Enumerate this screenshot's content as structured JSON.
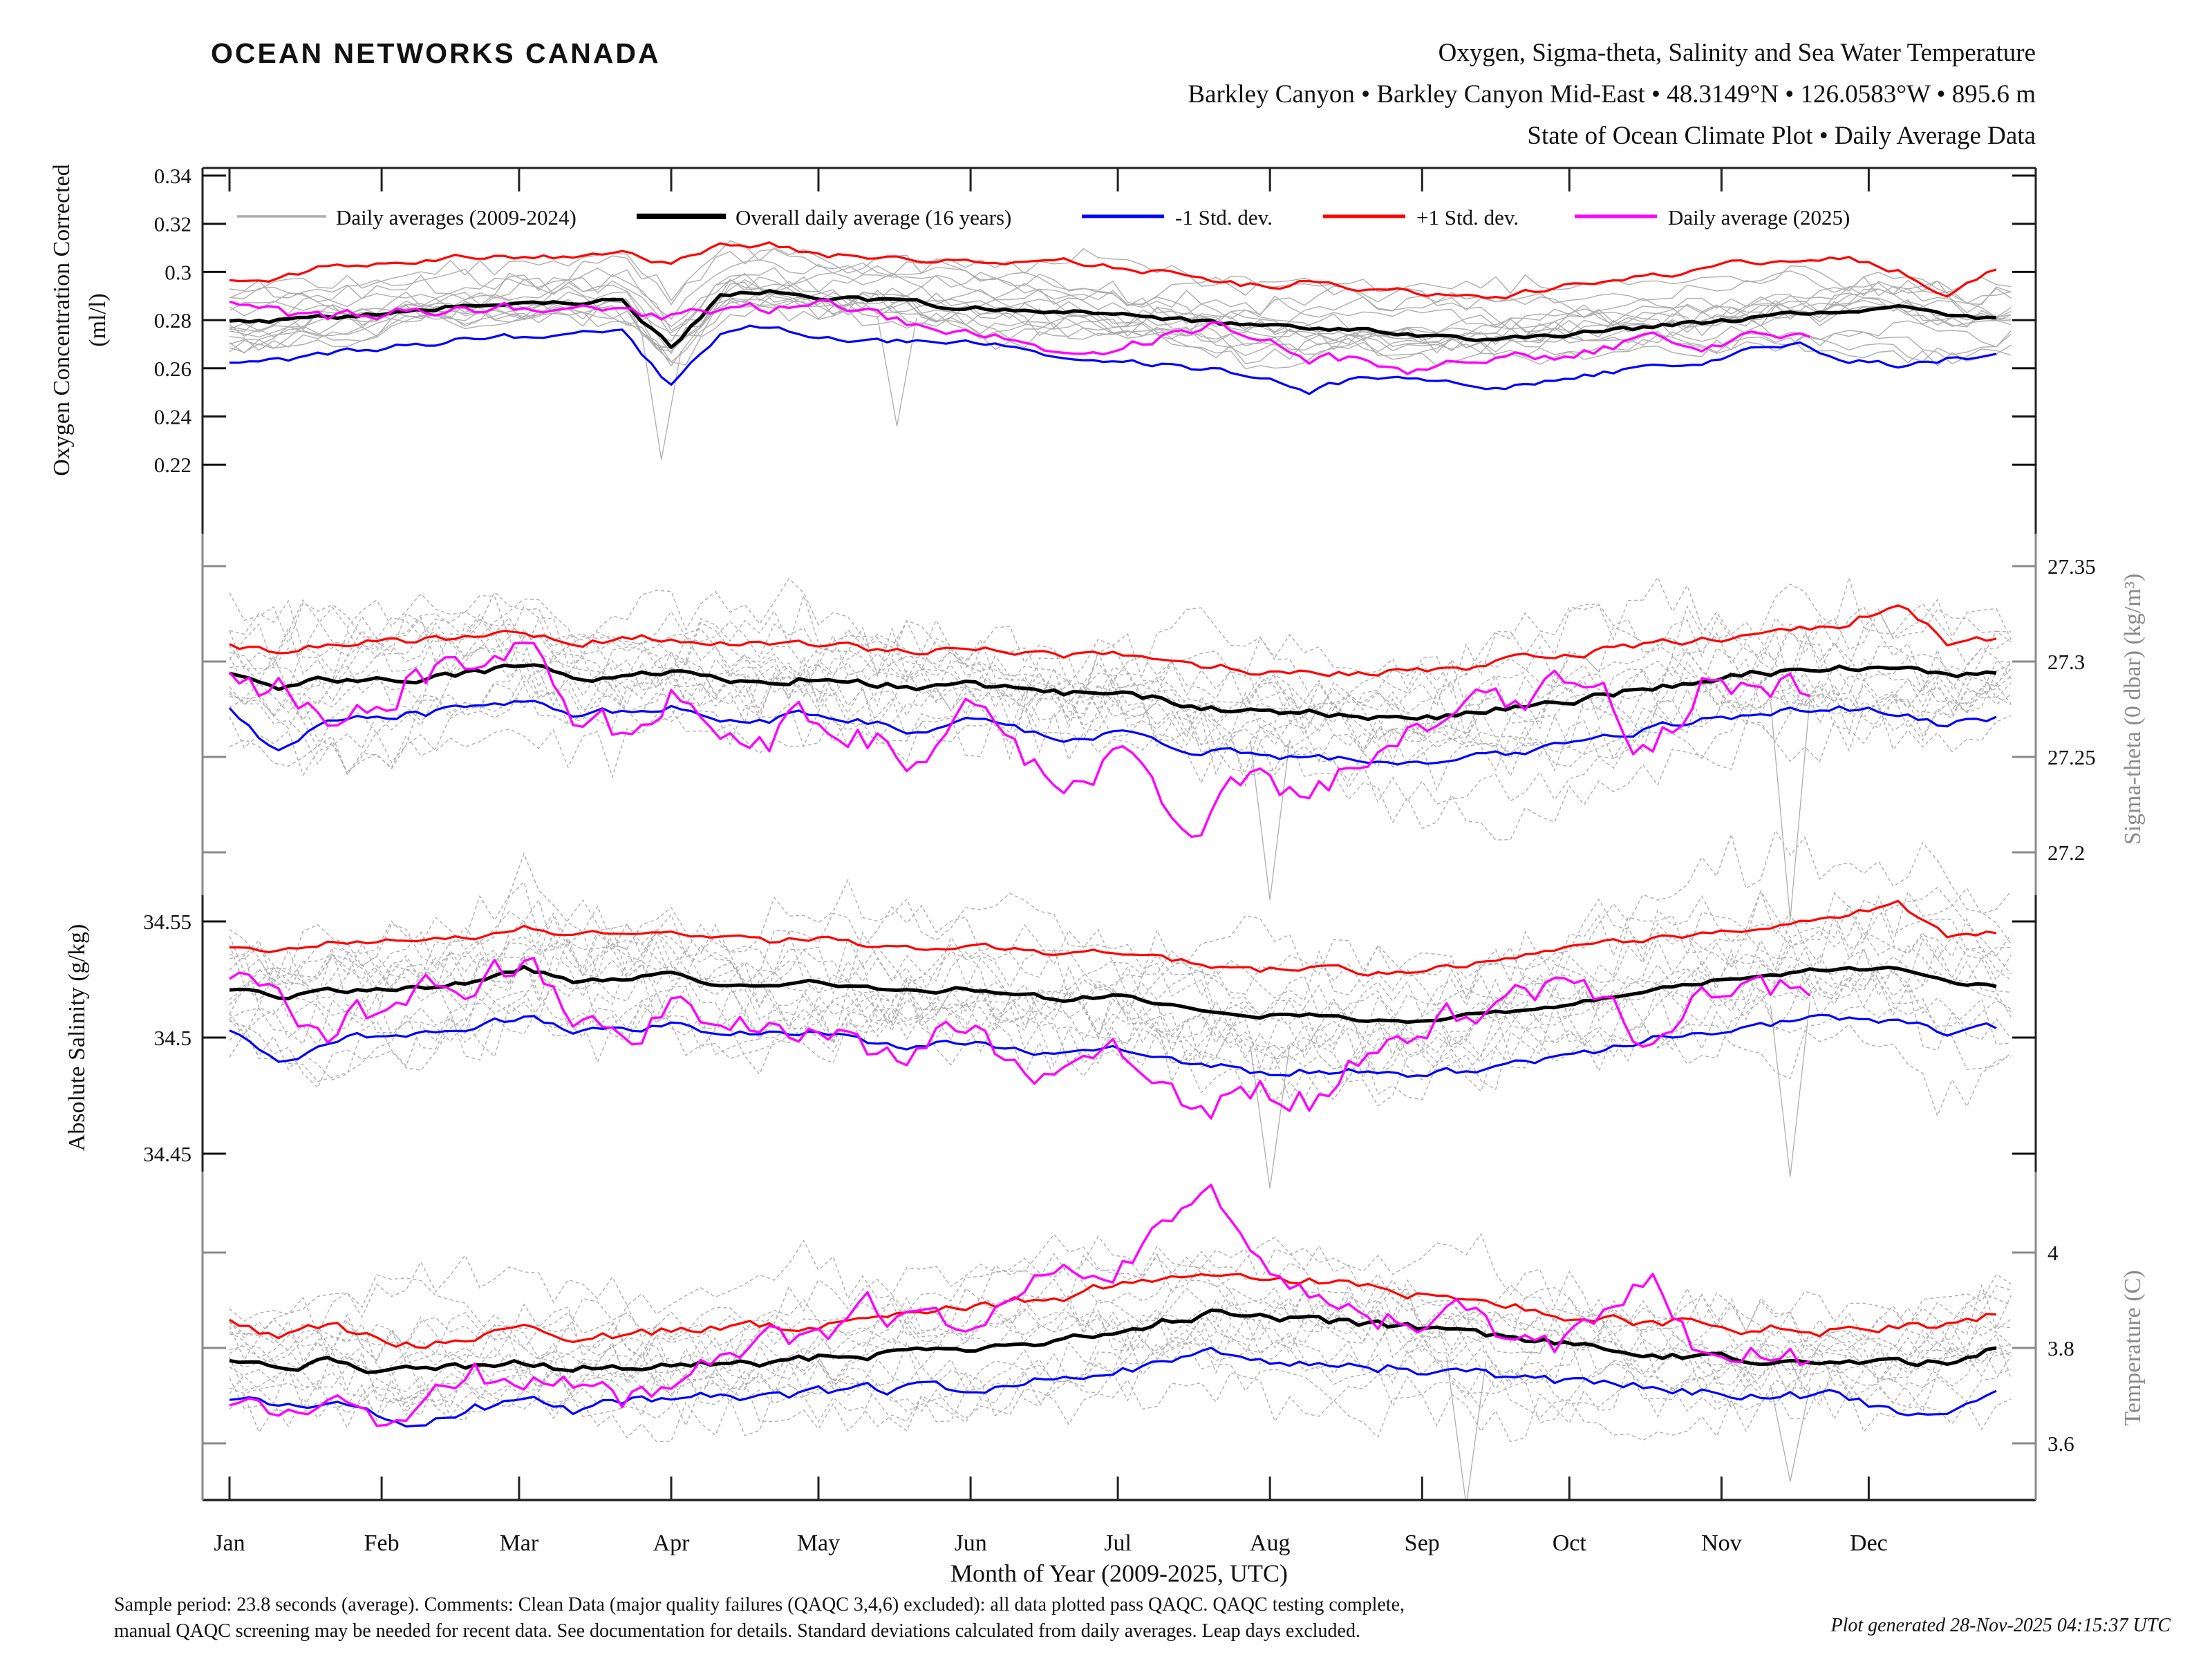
{
  "header": {
    "logo": "OCEAN NETWORKS CANADA",
    "title_line1": "Oxygen, Sigma-theta, Salinity and Sea Water Temperature",
    "title_line2": "Barkley Canyon • Barkley Canyon Mid-East • 48.3149°N • 126.0583°W • 895.6 m",
    "title_line3": "State of Ocean Climate Plot • Daily Average Data"
  },
  "colors": {
    "brand_teal": "#1E98B5",
    "mean": "#000000",
    "std_minus": "#0000FF",
    "std_plus": "#FF0000",
    "current_year": "#FF00FF",
    "history": "#ADADAD",
    "axis_gray": "#8A8A8A"
  },
  "legend": [
    {
      "label": "Daily averages (2009-2024)",
      "color_key": "history"
    },
    {
      "label": "Overall daily average (16 years)",
      "color_key": "mean"
    },
    {
      "label": "-1 Std. dev.",
      "color_key": "std_minus"
    },
    {
      "label": "+1 Std. dev.",
      "color_key": "std_plus"
    },
    {
      "label": "Daily average (2025)",
      "color_key": "current_year"
    }
  ],
  "x_axis": {
    "label": "Month of Year (2009-2025, UTC)",
    "month_labels": [
      "Jan",
      "Feb",
      "Mar",
      "Apr",
      "May",
      "Jun",
      "Jul",
      "Aug",
      "Sep",
      "Oct",
      "Nov",
      "Dec"
    ],
    "month_start_days": [
      0,
      31,
      59,
      90,
      120,
      151,
      181,
      212,
      243,
      273,
      304,
      334
    ]
  },
  "footer": {
    "line1": "Sample period: 23.8 seconds (average). Comments: Clean Data (major quality failures (QAQC 3,4,6) excluded): all data plotted pass QAQC. QAQC testing complete,",
    "line2": "manual QAQC screening may be needed for recent data. See documentation for details. Standard deviations calculated from daily averages. Leap days excluded.",
    "generated_note": "Plot generated 28-Nov-2025 04:15:37 UTC"
  },
  "chart_meta": {
    "seed": 42,
    "x_days_climatology": [
      0,
      10,
      20,
      30,
      40,
      50,
      60,
      70,
      80,
      90,
      100,
      110,
      120,
      130,
      140,
      150,
      160,
      170,
      180,
      190,
      200,
      210,
      220,
      230,
      240,
      250,
      260,
      270,
      280,
      290,
      300,
      310,
      320,
      330,
      340,
      350,
      360
    ],
    "x_days_2025": [
      0,
      10,
      20,
      30,
      40,
      50,
      60,
      70,
      80,
      90,
      100,
      110,
      120,
      130,
      140,
      150,
      160,
      170,
      180,
      190,
      200,
      210,
      220,
      230,
      240,
      250,
      260,
      270,
      280,
      290,
      300,
      310,
      322
    ]
  },
  "chart_data": [
    {
      "type": "line",
      "name": "oxygen",
      "ylabel_lines": [
        "Oxygen Concentration Corrected",
        "(ml/l)"
      ],
      "axis_side": "left",
      "tick_values": [
        0.34,
        0.32,
        0.3,
        0.28,
        0.26,
        0.24,
        0.22
      ],
      "tick_labels": [
        "0.34",
        "0.32",
        "0.3",
        "0.28",
        "0.26",
        "0.24",
        "0.22"
      ],
      "ylim": [
        0.215,
        0.345
      ],
      "history": {
        "count": 15,
        "spread": 0.012,
        "fast": 0.003,
        "dashed": false,
        "spikes": [
          {
            "day": 88,
            "value": 0.222
          },
          {
            "day": 136,
            "value": 0.236
          }
        ]
      },
      "series": [
        {
          "id": "std_plus",
          "color_key": "std_plus",
          "width": 3.2,
          "jitter": 0.0016,
          "x": "climatology",
          "values": [
            0.296,
            0.298,
            0.302,
            0.304,
            0.305,
            0.306,
            0.305,
            0.306,
            0.307,
            0.303,
            0.31,
            0.312,
            0.307,
            0.306,
            0.305,
            0.304,
            0.303,
            0.304,
            0.302,
            0.3,
            0.297,
            0.294,
            0.296,
            0.293,
            0.292,
            0.291,
            0.289,
            0.294,
            0.297,
            0.299,
            0.301,
            0.304,
            0.306,
            0.305,
            0.3,
            0.291,
            0.301
          ]
        },
        {
          "id": "std_minus",
          "color_key": "std_minus",
          "width": 3.2,
          "jitter": 0.0016,
          "x": "climatology",
          "values": [
            0.262,
            0.263,
            0.266,
            0.268,
            0.27,
            0.272,
            0.273,
            0.274,
            0.275,
            0.253,
            0.274,
            0.278,
            0.272,
            0.271,
            0.272,
            0.27,
            0.268,
            0.265,
            0.263,
            0.261,
            0.259,
            0.256,
            0.251,
            0.255,
            0.257,
            0.254,
            0.252,
            0.255,
            0.258,
            0.26,
            0.263,
            0.268,
            0.27,
            0.264,
            0.262,
            0.264,
            0.266
          ]
        },
        {
          "id": "mean",
          "color_key": "mean",
          "width": 5,
          "jitter": 0.0012,
          "x": "climatology",
          "values": [
            0.279,
            0.28,
            0.281,
            0.283,
            0.285,
            0.287,
            0.287,
            0.288,
            0.288,
            0.269,
            0.29,
            0.292,
            0.289,
            0.288,
            0.287,
            0.285,
            0.284,
            0.284,
            0.283,
            0.281,
            0.279,
            0.277,
            0.277,
            0.276,
            0.274,
            0.273,
            0.272,
            0.274,
            0.276,
            0.277,
            0.279,
            0.281,
            0.283,
            0.285,
            0.285,
            0.282,
            0.281
          ]
        },
        {
          "id": "year_2025",
          "color_key": "current_year",
          "width": 3.4,
          "jitter": 0.003,
          "x": "2025",
          "values": [
            0.287,
            0.283,
            0.281,
            0.282,
            0.284,
            0.283,
            0.285,
            0.284,
            0.283,
            0.282,
            0.284,
            0.285,
            0.287,
            0.283,
            0.279,
            0.273,
            0.27,
            0.268,
            0.267,
            0.272,
            0.277,
            0.272,
            0.265,
            0.262,
            0.26,
            0.263,
            0.266,
            0.264,
            0.268,
            0.272,
            0.27,
            0.274,
            0.273
          ]
        }
      ]
    },
    {
      "type": "line",
      "name": "sigma_theta",
      "ylabel": "Sigma-theta (0 dbar) (kg/m³)",
      "axis_side": "right",
      "tick_values": [
        27.35,
        27.3,
        27.25,
        27.2
      ],
      "tick_labels": [
        "27.35",
        "27.3",
        "27.25",
        "27.2"
      ],
      "ylim": [
        27.11,
        27.37
      ],
      "history": {
        "count": 15,
        "spread": 0.03,
        "fast": 0.012,
        "dashed": true,
        "spikes": [
          {
            "day": 212,
            "value": 27.175
          },
          {
            "day": 318,
            "value": 27.165
          }
        ]
      },
      "series": [
        {
          "id": "std_plus",
          "color_key": "std_plus",
          "width": 3.2,
          "jitter": 0.0024,
          "x": "climatology",
          "values": [
            27.308,
            27.305,
            27.309,
            27.31,
            27.312,
            27.312,
            27.315,
            27.31,
            27.312,
            27.313,
            27.31,
            27.308,
            27.31,
            27.307,
            27.305,
            27.307,
            27.305,
            27.303,
            27.304,
            27.3,
            27.297,
            27.295,
            27.297,
            27.294,
            27.295,
            27.297,
            27.3,
            27.303,
            27.306,
            27.309,
            27.311,
            27.313,
            27.316,
            27.32,
            27.332,
            27.31,
            27.312
          ]
        },
        {
          "id": "std_minus",
          "color_key": "std_minus",
          "width": 3.2,
          "jitter": 0.0026,
          "x": "climatology",
          "values": [
            27.277,
            27.252,
            27.27,
            27.272,
            27.273,
            27.275,
            27.279,
            27.273,
            27.274,
            27.276,
            27.271,
            27.27,
            27.272,
            27.268,
            27.264,
            27.268,
            27.264,
            27.26,
            27.263,
            27.258,
            27.253,
            27.249,
            27.25,
            27.248,
            27.245,
            27.247,
            27.251,
            27.255,
            27.26,
            27.266,
            27.27,
            27.272,
            27.274,
            27.275,
            27.272,
            27.267,
            27.271
          ]
        },
        {
          "id": "mean",
          "color_key": "mean",
          "width": 5,
          "jitter": 0.0022,
          "x": "climatology",
          "values": [
            27.293,
            27.287,
            27.29,
            27.291,
            27.292,
            27.294,
            27.298,
            27.292,
            27.293,
            27.295,
            27.291,
            27.29,
            27.292,
            27.289,
            27.287,
            27.289,
            27.286,
            27.283,
            27.285,
            27.28,
            27.276,
            27.273,
            27.274,
            27.272,
            27.27,
            27.272,
            27.275,
            27.278,
            27.282,
            27.287,
            27.29,
            27.293,
            27.295,
            27.297,
            27.296,
            27.292,
            27.294
          ]
        },
        {
          "id": "year_2025",
          "color_key": "current_year",
          "width": 3.4,
          "jitter": 0.011,
          "x": "2025",
          "values": [
            27.3,
            27.285,
            27.27,
            27.28,
            27.295,
            27.288,
            27.31,
            27.275,
            27.262,
            27.282,
            27.27,
            27.262,
            27.268,
            27.258,
            27.252,
            27.27,
            27.248,
            27.24,
            27.252,
            27.23,
            27.22,
            27.235,
            27.228,
            27.245,
            27.256,
            27.268,
            27.276,
            27.285,
            27.282,
            27.252,
            27.29,
            27.288,
            27.282
          ]
        }
      ]
    },
    {
      "type": "line",
      "name": "salinity",
      "ylabel": "Absolute Salinity (g/kg)",
      "axis_side": "left",
      "tick_values": [
        34.55,
        34.5,
        34.45
      ],
      "tick_labels": [
        "34.55",
        "34.5",
        "34.45"
      ],
      "ylim": [
        34.42,
        34.59
      ],
      "history": {
        "count": 15,
        "spread": 0.026,
        "fast": 0.01,
        "dashed": true,
        "spikes": [
          {
            "day": 212,
            "value": 34.435
          },
          {
            "day": 318,
            "value": 34.44
          }
        ]
      },
      "series": [
        {
          "id": "std_plus",
          "color_key": "std_plus",
          "width": 3.2,
          "jitter": 0.0015,
          "x": "climatology",
          "values": [
            34.54,
            34.537,
            34.541,
            34.542,
            34.543,
            34.544,
            34.548,
            34.543,
            34.545,
            34.546,
            34.543,
            34.541,
            34.543,
            34.54,
            34.538,
            34.54,
            34.538,
            34.536,
            34.537,
            34.534,
            34.531,
            34.529,
            34.531,
            34.528,
            34.529,
            34.531,
            34.534,
            34.537,
            34.54,
            34.543,
            34.545,
            34.547,
            34.55,
            34.553,
            34.558,
            34.543,
            34.545
          ]
        },
        {
          "id": "std_minus",
          "color_key": "std_minus",
          "width": 3.2,
          "jitter": 0.002,
          "x": "climatology",
          "values": [
            34.503,
            34.488,
            34.499,
            34.501,
            34.502,
            34.504,
            34.509,
            34.503,
            34.504,
            34.506,
            34.502,
            34.501,
            34.503,
            34.499,
            34.496,
            34.499,
            34.496,
            34.493,
            34.495,
            34.491,
            34.488,
            34.485,
            34.486,
            34.485,
            34.483,
            34.485,
            34.488,
            34.491,
            34.495,
            34.5,
            34.503,
            34.505,
            34.507,
            34.508,
            34.506,
            34.502,
            34.504
          ]
        },
        {
          "id": "mean",
          "color_key": "mean",
          "width": 5,
          "jitter": 0.0012,
          "x": "climatology",
          "values": [
            34.521,
            34.517,
            34.52,
            34.521,
            34.522,
            34.524,
            34.53,
            34.524,
            34.525,
            34.527,
            34.523,
            34.522,
            34.524,
            34.521,
            34.519,
            34.521,
            34.519,
            34.516,
            34.518,
            34.514,
            34.511,
            34.509,
            34.51,
            34.508,
            34.507,
            34.509,
            34.511,
            34.514,
            34.517,
            34.521,
            34.524,
            34.526,
            34.528,
            34.53,
            34.529,
            34.525,
            34.522
          ]
        },
        {
          "id": "year_2025",
          "color_key": "current_year",
          "width": 3.4,
          "jitter": 0.008,
          "x": "2025",
          "values": [
            34.525,
            34.515,
            34.505,
            34.512,
            34.524,
            34.519,
            34.533,
            34.51,
            34.5,
            34.515,
            34.508,
            34.5,
            34.505,
            34.498,
            34.494,
            34.51,
            34.492,
            34.485,
            34.494,
            34.478,
            34.468,
            34.48,
            34.474,
            34.488,
            34.497,
            34.508,
            34.515,
            34.522,
            34.52,
            34.495,
            34.526,
            34.524,
            34.518
          ]
        }
      ]
    },
    {
      "type": "line",
      "name": "temperature",
      "ylabel": "Temperature (C)",
      "axis_side": "right",
      "tick_values": [
        4,
        3.8,
        3.6
      ],
      "tick_labels": [
        "4",
        "3.8",
        "3.6"
      ],
      "ylim": [
        3.55,
        4.2
      ],
      "history": {
        "count": 15,
        "spread": 0.105,
        "fast": 0.04,
        "dashed": true,
        "spikes": [
          {
            "day": 252,
            "value": 3.47
          },
          {
            "day": 318,
            "value": 3.52
          }
        ]
      },
      "series": [
        {
          "id": "std_plus",
          "color_key": "std_plus",
          "width": 3.2,
          "jitter": 0.013,
          "x": "climatology",
          "values": [
            3.85,
            3.828,
            3.845,
            3.82,
            3.812,
            3.825,
            3.832,
            3.82,
            3.828,
            3.838,
            3.845,
            3.842,
            3.852,
            3.862,
            3.872,
            3.882,
            3.895,
            3.91,
            3.93,
            3.952,
            3.965,
            3.95,
            3.938,
            3.928,
            3.918,
            3.902,
            3.888,
            3.875,
            3.862,
            3.855,
            3.85,
            3.843,
            3.838,
            3.835,
            3.842,
            3.848,
            3.87
          ]
        },
        {
          "id": "std_minus",
          "color_key": "std_minus",
          "width": 3.2,
          "jitter": 0.013,
          "x": "climatology",
          "values": [
            3.7,
            3.685,
            3.695,
            3.668,
            3.64,
            3.672,
            3.69,
            3.668,
            3.685,
            3.695,
            3.7,
            3.695,
            3.703,
            3.71,
            3.712,
            3.718,
            3.726,
            3.732,
            3.745,
            3.765,
            3.782,
            3.775,
            3.77,
            3.765,
            3.758,
            3.748,
            3.74,
            3.73,
            3.722,
            3.716,
            3.71,
            3.703,
            3.7,
            3.695,
            3.668,
            3.648,
            3.71
          ]
        },
        {
          "id": "mean",
          "color_key": "mean",
          "width": 5,
          "jitter": 0.01,
          "x": "climatology",
          "values": [
            3.775,
            3.76,
            3.77,
            3.755,
            3.752,
            3.76,
            3.765,
            3.758,
            3.762,
            3.768,
            3.772,
            3.77,
            3.778,
            3.785,
            3.792,
            3.8,
            3.81,
            3.82,
            3.838,
            3.858,
            3.872,
            3.865,
            3.858,
            3.852,
            3.845,
            3.832,
            3.82,
            3.808,
            3.795,
            3.788,
            3.782,
            3.776,
            3.772,
            3.768,
            3.765,
            3.77,
            3.8
          ]
        },
        {
          "id": "year_2025",
          "color_key": "current_year",
          "width": 3.4,
          "jitter": 0.03,
          "x": "2025",
          "values": [
            3.7,
            3.672,
            3.718,
            3.66,
            3.7,
            3.745,
            3.705,
            3.732,
            3.68,
            3.722,
            3.78,
            3.822,
            3.802,
            3.878,
            3.842,
            3.86,
            3.918,
            3.958,
            3.94,
            4.05,
            4.1,
            3.985,
            3.92,
            3.882,
            3.852,
            3.882,
            3.82,
            3.8,
            3.858,
            3.95,
            3.785,
            3.802,
            3.772
          ]
        }
      ]
    }
  ]
}
